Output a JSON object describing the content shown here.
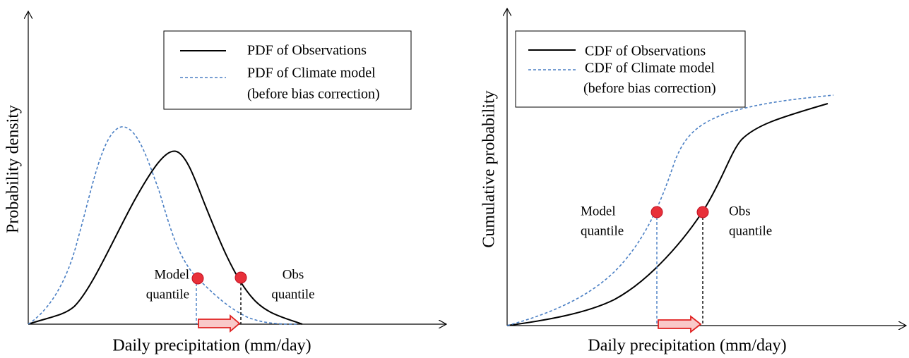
{
  "left": {
    "y_label": "Probability density",
    "x_label": "Daily precipitation (mm/day)",
    "legend": {
      "observations": "PDF of Observations",
      "model": "PDF of Climate model",
      "model_note": "(before bias correction)"
    },
    "model_quantile": [
      "Model",
      "quantile"
    ],
    "obs_quantile": [
      "Obs",
      "quantile"
    ]
  },
  "right": {
    "y_label": "Cumulative probability",
    "x_label": "Daily precipitation (mm/day)",
    "legend": {
      "observations": "CDF of Observations",
      "model": "CDF of Climate model",
      "model_note": "(before bias correction)"
    },
    "model_quantile": [
      "Model",
      "quantile"
    ],
    "obs_quantile": [
      "Obs",
      "quantile"
    ]
  }
}
